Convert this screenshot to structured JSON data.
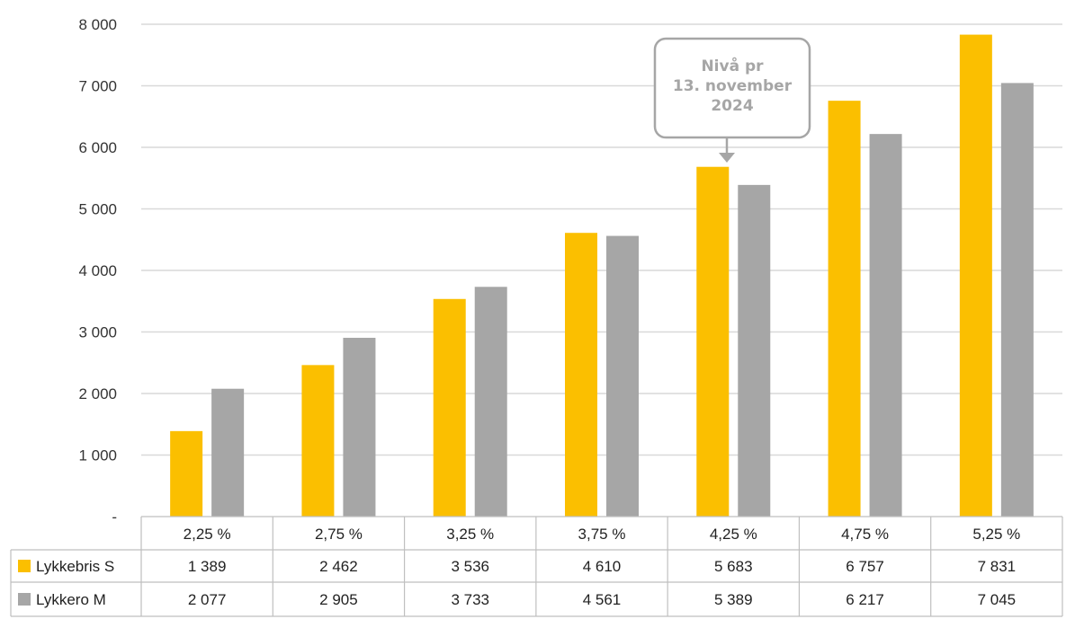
{
  "chart_data": {
    "type": "bar",
    "categories": [
      "2,25 %",
      "2,75 %",
      "3,25 %",
      "3,75 %",
      "4,25 %",
      "4,75 %",
      "5,25 %"
    ],
    "series": [
      {
        "name": "Lykkebris S",
        "values": [
          1389,
          2462,
          3536,
          4610,
          5683,
          6757,
          7831
        ],
        "labels": [
          "1 389",
          "2 462",
          "3 536",
          "4 610",
          "5 683",
          "6 757",
          "7 831"
        ],
        "color": "#fbbf00"
      },
      {
        "name": "Lykkero M",
        "values": [
          2077,
          2905,
          3733,
          4561,
          5389,
          6217,
          7045
        ],
        "labels": [
          "2 077",
          "2 905",
          "3 733",
          "4 561",
          "5 389",
          "6 217",
          "7 045"
        ],
        "color": "#a6a6a6"
      }
    ],
    "ylim": [
      0,
      8000
    ],
    "yticks": [
      0,
      1000,
      2000,
      3000,
      4000,
      5000,
      6000,
      7000,
      8000
    ],
    "ytick_labels": [
      "-",
      "1 000",
      "2 000",
      "3 000",
      "4 000",
      "5 000",
      "6 000",
      "7 000",
      "8 000"
    ],
    "grid": true,
    "legend": "data table below chart",
    "annotation": {
      "lines": [
        "Nivå pr",
        "13. november",
        "2024"
      ],
      "target_category": "4,25 %",
      "target_series": "Lykkebris S"
    }
  }
}
